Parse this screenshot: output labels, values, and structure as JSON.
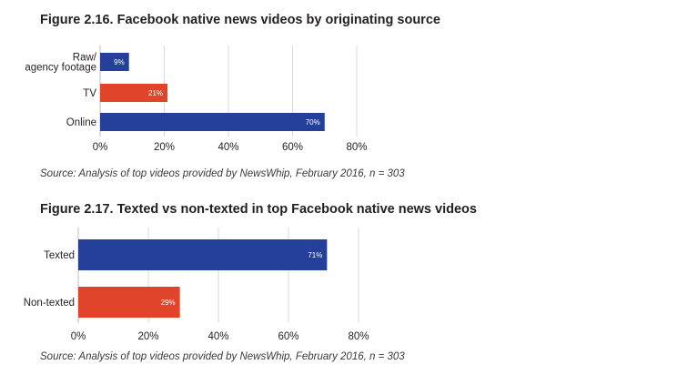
{
  "chart_data": [
    {
      "type": "bar",
      "orientation": "horizontal",
      "title": "Figure 2.16. Facebook native news videos by originating source",
      "categories": [
        [
          "Raw/",
          "agency footage"
        ],
        [
          "TV"
        ],
        [
          "Online"
        ]
      ],
      "values": [
        9,
        21,
        70
      ],
      "data_labels": [
        "9%",
        "21%",
        "70%"
      ],
      "colors": [
        "#24409a",
        "#e0442a",
        "#24409a"
      ],
      "xlim": [
        0,
        80
      ],
      "xticks": [
        0,
        20,
        40,
        60,
        80
      ],
      "xtick_labels": [
        "0%",
        "20%",
        "40%",
        "60%",
        "80%"
      ],
      "grid": true,
      "source": "Source: Analysis of top videos provided by NewsWhip, February 2016, n = 303"
    },
    {
      "type": "bar",
      "orientation": "horizontal",
      "title": "Figure 2.17. Texted vs non-texted in top Facebook native news videos",
      "categories": [
        [
          "Texted"
        ],
        [
          "Non-texted"
        ]
      ],
      "values": [
        71,
        29
      ],
      "data_labels": [
        "71%",
        "29%"
      ],
      "colors": [
        "#24409a",
        "#e0442a"
      ],
      "xlim": [
        0,
        80
      ],
      "xticks": [
        0,
        20,
        40,
        60,
        80
      ],
      "xtick_labels": [
        "0%",
        "20%",
        "40%",
        "60%",
        "80%"
      ],
      "grid": true,
      "source": "Source: Analysis of top videos provided by NewsWhip, February 2016, n = 303"
    }
  ]
}
